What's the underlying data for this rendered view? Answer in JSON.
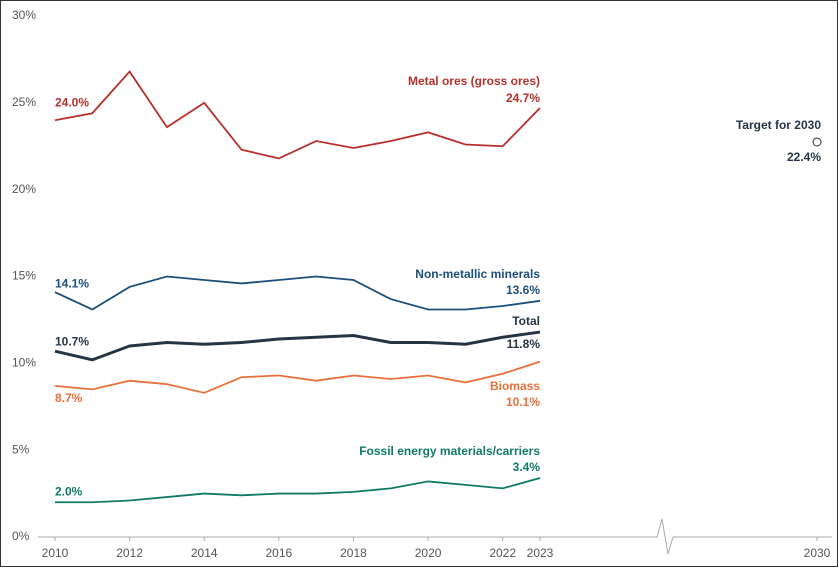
{
  "chart_data": {
    "type": "line",
    "x": [
      2010,
      2011,
      2012,
      2013,
      2014,
      2015,
      2016,
      2017,
      2018,
      2019,
      2020,
      2021,
      2022,
      2023
    ],
    "xlim": [
      2010,
      2030
    ],
    "xticks": [
      2010,
      2012,
      2014,
      2016,
      2018,
      2020,
      2022,
      2023,
      2030
    ],
    "axis_break": true,
    "ylim": [
      0,
      30
    ],
    "yticks": [
      {
        "value": 0,
        "label": "0%"
      },
      {
        "value": 5,
        "label": "5%"
      },
      {
        "value": 10,
        "label": "10%"
      },
      {
        "value": 15,
        "label": "15%"
      },
      {
        "value": 20,
        "label": "20%"
      },
      {
        "value": 25,
        "label": "25%"
      },
      {
        "value": 30,
        "label": "30%"
      }
    ],
    "series": [
      {
        "name": "Metal ores (gross ores)",
        "color": "#b7312c",
        "values": [
          24.0,
          24.4,
          26.8,
          23.6,
          25.0,
          22.3,
          21.8,
          22.8,
          22.4,
          22.8,
          23.3,
          22.6,
          22.5,
          24.7
        ],
        "value_labels": [
          "24.0%",
          null,
          null,
          null,
          null,
          null,
          null,
          null,
          null,
          null,
          null,
          null,
          null,
          "24.7%"
        ]
      },
      {
        "name": "Non-metallic minerals",
        "color": "#1c4f7c",
        "values": [
          14.1,
          13.1,
          14.4,
          15.0,
          14.8,
          14.6,
          14.8,
          15.0,
          14.8,
          13.7,
          13.1,
          13.1,
          13.3,
          13.6
        ],
        "value_labels": [
          "14.1%",
          null,
          null,
          null,
          null,
          null,
          null,
          null,
          null,
          null,
          null,
          null,
          null,
          "13.6%"
        ]
      },
      {
        "name": "Total",
        "color": "#263545",
        "values": [
          10.7,
          10.2,
          11.0,
          11.2,
          11.1,
          11.2,
          11.4,
          11.5,
          11.6,
          11.2,
          11.2,
          11.1,
          11.5,
          11.8
        ],
        "value_labels": [
          "10.7%",
          null,
          null,
          null,
          null,
          null,
          null,
          null,
          null,
          null,
          null,
          null,
          null,
          "11.8%"
        ]
      },
      {
        "name": "Biomass",
        "color": "#e8713a",
        "values": [
          8.7,
          8.5,
          9.0,
          8.8,
          8.3,
          9.2,
          9.3,
          9.0,
          9.3,
          9.1,
          9.3,
          8.9,
          9.4,
          10.1
        ],
        "value_labels": [
          "8.7%",
          null,
          null,
          null,
          null,
          null,
          null,
          null,
          null,
          null,
          null,
          null,
          null,
          "10.1%"
        ]
      },
      {
        "name": "Fossil energy materials/carriers",
        "color": "#127a68",
        "values": [
          2.0,
          2.0,
          2.1,
          2.3,
          2.5,
          2.4,
          2.5,
          2.5,
          2.6,
          2.8,
          3.2,
          3.0,
          2.8,
          3.4
        ],
        "value_labels": [
          "2.0%",
          null,
          null,
          null,
          null,
          null,
          null,
          null,
          null,
          null,
          null,
          null,
          null,
          "3.4%"
        ]
      }
    ],
    "target": {
      "name": "Target for 2030",
      "x": 2030,
      "value": 22.4,
      "value_label": "22.4%",
      "color": "#263545"
    }
  }
}
